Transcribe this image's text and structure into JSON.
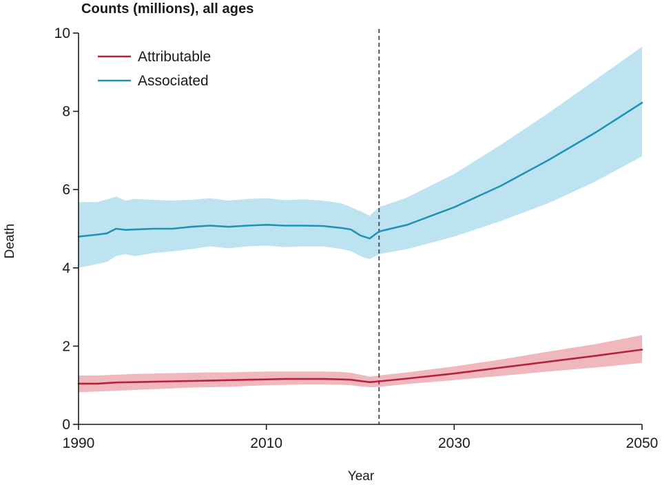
{
  "chart_data": {
    "type": "line",
    "title": "Counts (millions), all ages",
    "xlabel": "Year",
    "ylabel": "Death",
    "xlim": [
      1990,
      2050
    ],
    "ylim": [
      0,
      10
    ],
    "x_ticks": [
      1990,
      2010,
      2030,
      2050
    ],
    "y_ticks": [
      0,
      2,
      4,
      6,
      8,
      10
    ],
    "x_tick_labels": [
      "1990",
      "2010",
      "2030",
      "2050"
    ],
    "y_tick_labels": [
      "0",
      "2",
      "4",
      "6",
      "8",
      "10"
    ],
    "forecast_marker_x": 2022,
    "legend_position": "top-left",
    "series": [
      {
        "name": "Attributable",
        "color": "#b5213f",
        "band_color": "#f0b8bc",
        "x": [
          1990,
          1992,
          1994,
          1996,
          1998,
          2000,
          2002,
          2004,
          2006,
          2008,
          2010,
          2012,
          2014,
          2016,
          2018,
          2019,
          2020,
          2021,
          2022,
          2025,
          2030,
          2035,
          2040,
          2045,
          2050
        ],
        "y": [
          1.04,
          1.04,
          1.07,
          1.08,
          1.09,
          1.1,
          1.11,
          1.12,
          1.13,
          1.14,
          1.15,
          1.16,
          1.16,
          1.16,
          1.15,
          1.14,
          1.11,
          1.08,
          1.1,
          1.17,
          1.3,
          1.45,
          1.6,
          1.75,
          1.91
        ],
        "lower": [
          0.82,
          0.84,
          0.86,
          0.88,
          0.9,
          0.92,
          0.94,
          0.95,
          0.96,
          0.98,
          1.0,
          1.01,
          1.02,
          1.02,
          1.01,
          1.0,
          0.97,
          0.95,
          0.96,
          1.03,
          1.13,
          1.24,
          1.35,
          1.45,
          1.57
        ],
        "upper": [
          1.25,
          1.25,
          1.27,
          1.29,
          1.3,
          1.31,
          1.32,
          1.33,
          1.33,
          1.34,
          1.35,
          1.35,
          1.35,
          1.35,
          1.34,
          1.32,
          1.27,
          1.22,
          1.25,
          1.33,
          1.48,
          1.66,
          1.86,
          2.05,
          2.28
        ]
      },
      {
        "name": "Associated",
        "color": "#1f93b6",
        "band_color": "#bde3f1",
        "x": [
          1990,
          1992,
          1993,
          1994,
          1995,
          1996,
          1998,
          2000,
          2002,
          2004,
          2006,
          2008,
          2010,
          2012,
          2014,
          2016,
          2018,
          2019,
          2020,
          2021,
          2022,
          2025,
          2030,
          2035,
          2040,
          2045,
          2050
        ],
        "y": [
          4.8,
          4.85,
          4.88,
          5.0,
          4.97,
          4.98,
          5.0,
          5.0,
          5.05,
          5.08,
          5.05,
          5.08,
          5.1,
          5.08,
          5.08,
          5.07,
          5.02,
          4.98,
          4.83,
          4.75,
          4.93,
          5.1,
          5.55,
          6.1,
          6.75,
          7.45,
          8.22
        ],
        "lower": [
          4.0,
          4.1,
          4.15,
          4.3,
          4.35,
          4.3,
          4.38,
          4.42,
          4.48,
          4.55,
          4.5,
          4.55,
          4.57,
          4.53,
          4.55,
          4.55,
          4.48,
          4.43,
          4.3,
          4.22,
          4.35,
          4.48,
          4.8,
          5.2,
          5.65,
          6.2,
          6.85
        ],
        "upper": [
          5.68,
          5.68,
          5.75,
          5.82,
          5.72,
          5.76,
          5.74,
          5.72,
          5.74,
          5.78,
          5.72,
          5.76,
          5.78,
          5.73,
          5.75,
          5.72,
          5.65,
          5.55,
          5.45,
          5.33,
          5.55,
          5.8,
          6.4,
          7.15,
          7.95,
          8.8,
          9.65
        ]
      }
    ]
  }
}
